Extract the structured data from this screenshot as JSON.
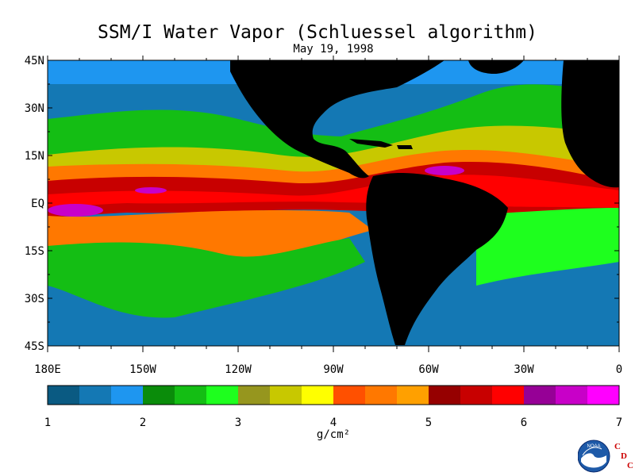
{
  "header": {
    "title": "SSM/I Water Vapor (Schluessel algorithm)",
    "date": "May 19, 1998"
  },
  "axes": {
    "lat_labels": [
      "45N",
      "30N",
      "15N",
      "EQ",
      "15S",
      "30S",
      "45S"
    ],
    "lon_labels": [
      "180E",
      "150W",
      "120W",
      "90W",
      "60W",
      "30W",
      "0"
    ]
  },
  "colorbar": {
    "ticks": [
      "1",
      "2",
      "3",
      "4",
      "5",
      "6",
      "7"
    ],
    "unit": "g/cm²",
    "colors": [
      "#0a5a82",
      "#1478b4",
      "#1e96f0",
      "#0a8c0a",
      "#14be14",
      "#1eff1e",
      "#96961e",
      "#c8c800",
      "#ffff00",
      "#ff5000",
      "#ff7800",
      "#ffa000",
      "#960000",
      "#c80000",
      "#ff0000",
      "#960096",
      "#c800c8",
      "#ff00ff"
    ]
  },
  "logo": {
    "noaa_text": "NOAA",
    "cdc_letters": [
      "C",
      "D",
      "C"
    ],
    "icon": "noaa-logo"
  },
  "map_colors": {
    "land": "#000000",
    "very_dry": "#0a5a82",
    "dry": "#1478b4",
    "moderate": "#1e96f0",
    "green": "#14be14",
    "bright_green": "#1eff1e",
    "olive": "#c8c800",
    "yellow": "#ffff00",
    "orange": "#ff7800",
    "red": "#c80000",
    "bright_red": "#ff0000",
    "magenta": "#c800c8"
  }
}
